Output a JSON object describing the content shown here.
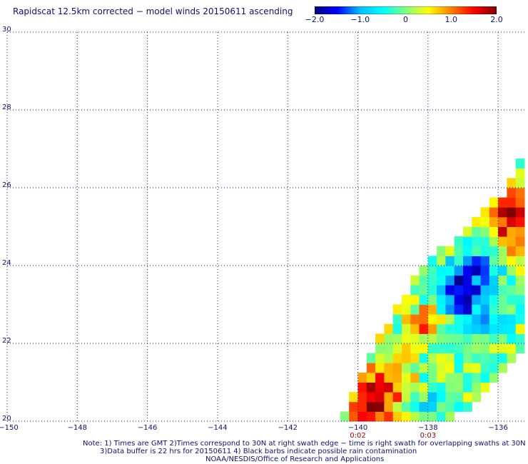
{
  "chart_data": {
    "type": "heatmap",
    "title": "Rapidscat 12.5km corrected − model winds 20150611 ascending",
    "colorbar": {
      "ticks": [
        "−2.0",
        "−1.0",
        "0",
        "1.0",
        "2.0"
      ],
      "range": [
        -2.0,
        2.0
      ],
      "colors": [
        "#00007f",
        "#0000ff",
        "#00bfff",
        "#00ffff",
        "#7fff7f",
        "#ffff00",
        "#ff7f00",
        "#ff0000",
        "#7f0000"
      ]
    },
    "x_ticks": [
      "−150",
      "−148",
      "−146",
      "−144",
      "−142",
      "−140",
      "−138",
      "−136"
    ],
    "x_tick_values": [
      -150,
      -148,
      -146,
      -144,
      -142,
      -140,
      -138,
      -136
    ],
    "y_ticks": [
      "20",
      "22",
      "24",
      "26",
      "28",
      "30"
    ],
    "y_tick_values": [
      20,
      22,
      24,
      26,
      28,
      30
    ],
    "xlim": [
      -150,
      -135.25
    ],
    "ylim": [
      20,
      30
    ],
    "grid": true,
    "time_labels": [
      {
        "lon": -140,
        "text": "0:02"
      },
      {
        "lon": -138,
        "text": "0:03"
      }
    ],
    "swath": {
      "description_colors": "wind speed difference (m/s) per 0.25 deg cell",
      "edges": [
        {
          "lat": 20.0,
          "lon_min": -140.4,
          "lon_max": -137.4
        },
        {
          "lat": 22.0,
          "lon_min": -139.4,
          "lon_max": -135.25
        },
        {
          "lat": 24.0,
          "lon_min": -138.0,
          "lon_max": -135.25
        },
        {
          "lat": 26.0,
          "lon_min": -135.6,
          "lon_max": -135.25
        },
        {
          "lat": 26.75,
          "lon_min": -135.25,
          "lon_max": -135.25
        }
      ],
      "features": [
        {
          "lat": 25.3,
          "lon": -135.7,
          "value": 2.0,
          "radius": 0.6
        },
        {
          "lat": 25.1,
          "lon": -135.4,
          "value": 1.9,
          "radius": 0.5
        },
        {
          "lat": 24.7,
          "lon": -135.6,
          "value": 1.2,
          "radius": 0.5
        },
        {
          "lat": 23.3,
          "lon": -136.9,
          "value": -2.0,
          "radius": 0.7
        },
        {
          "lat": 23.8,
          "lon": -136.6,
          "value": -1.4,
          "radius": 0.6
        },
        {
          "lat": 22.6,
          "lon": -136.3,
          "value": -1.0,
          "radius": 0.6
        },
        {
          "lat": 20.5,
          "lon": -139.6,
          "value": 2.0,
          "radius": 0.6
        },
        {
          "lat": 21.0,
          "lon": -139.0,
          "value": 1.3,
          "radius": 0.6
        },
        {
          "lat": 22.5,
          "lon": -138.1,
          "value": 1.3,
          "radius": 0.4
        },
        {
          "lat": 21.5,
          "lon": -137.4,
          "value": 0.0,
          "radius": 0.8
        },
        {
          "lat": 20.4,
          "lon": -137.8,
          "value": -0.6,
          "radius": 0.6
        }
      ]
    }
  },
  "notes": {
    "line1": "Note: 1) Times are GMT 2)Times correspond to 30N at right swath edge − time is right swath for overlapping swaths at 30N",
    "line2": "3)Data buffer is 22 hrs for 20150611 4) Black barbs indicate possible rain contamination",
    "line3": "NOAA/NESDIS/Office of Research and Applications"
  }
}
